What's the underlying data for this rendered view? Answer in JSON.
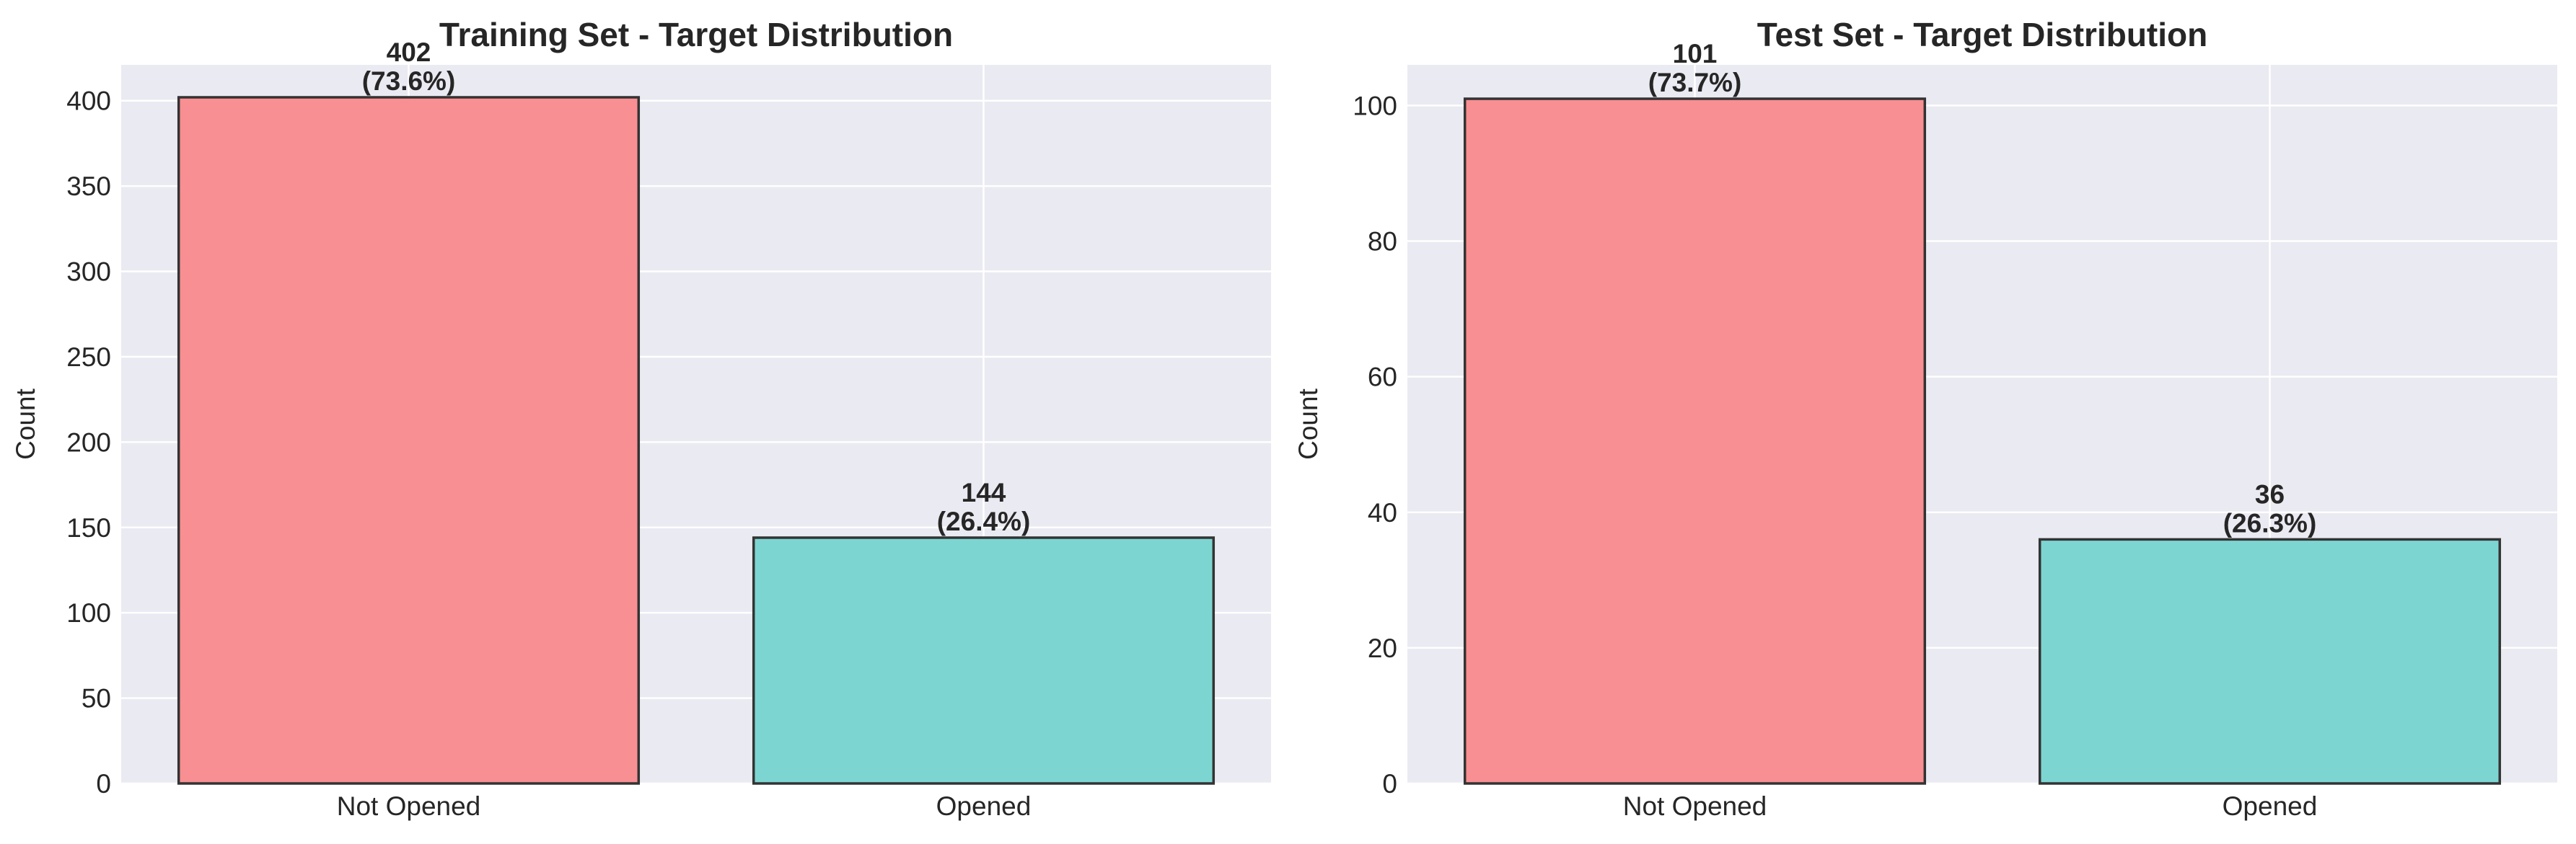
{
  "chart_data": [
    {
      "type": "bar",
      "title": "Training Set - Target Distribution",
      "xlabel": "",
      "ylabel": "Count",
      "categories": [
        "Not Opened",
        "Opened"
      ],
      "values": [
        402,
        144
      ],
      "percent_labels": [
        "(73.6%)",
        "(26.4%)"
      ],
      "ylim": [
        0,
        421
      ],
      "yticks": [
        0,
        50,
        100,
        150,
        200,
        250,
        300,
        350,
        400
      ],
      "colors": [
        "#f88f92",
        "#7dd5d2"
      ],
      "edge_color": "#333333",
      "background": "#eaeaf2",
      "grid": true,
      "legend": "none"
    },
    {
      "type": "bar",
      "title": "Test Set - Target Distribution",
      "xlabel": "",
      "ylabel": "Count",
      "categories": [
        "Not Opened",
        "Opened"
      ],
      "values": [
        101,
        36
      ],
      "percent_labels": [
        "(73.7%)",
        "(26.3%)"
      ],
      "ylim": [
        0,
        106
      ],
      "yticks": [
        0,
        20,
        40,
        60,
        80,
        100
      ],
      "colors": [
        "#f88f92",
        "#7dd5d2"
      ],
      "edge_color": "#333333",
      "background": "#eaeaf2",
      "grid": true,
      "legend": "none"
    }
  ]
}
